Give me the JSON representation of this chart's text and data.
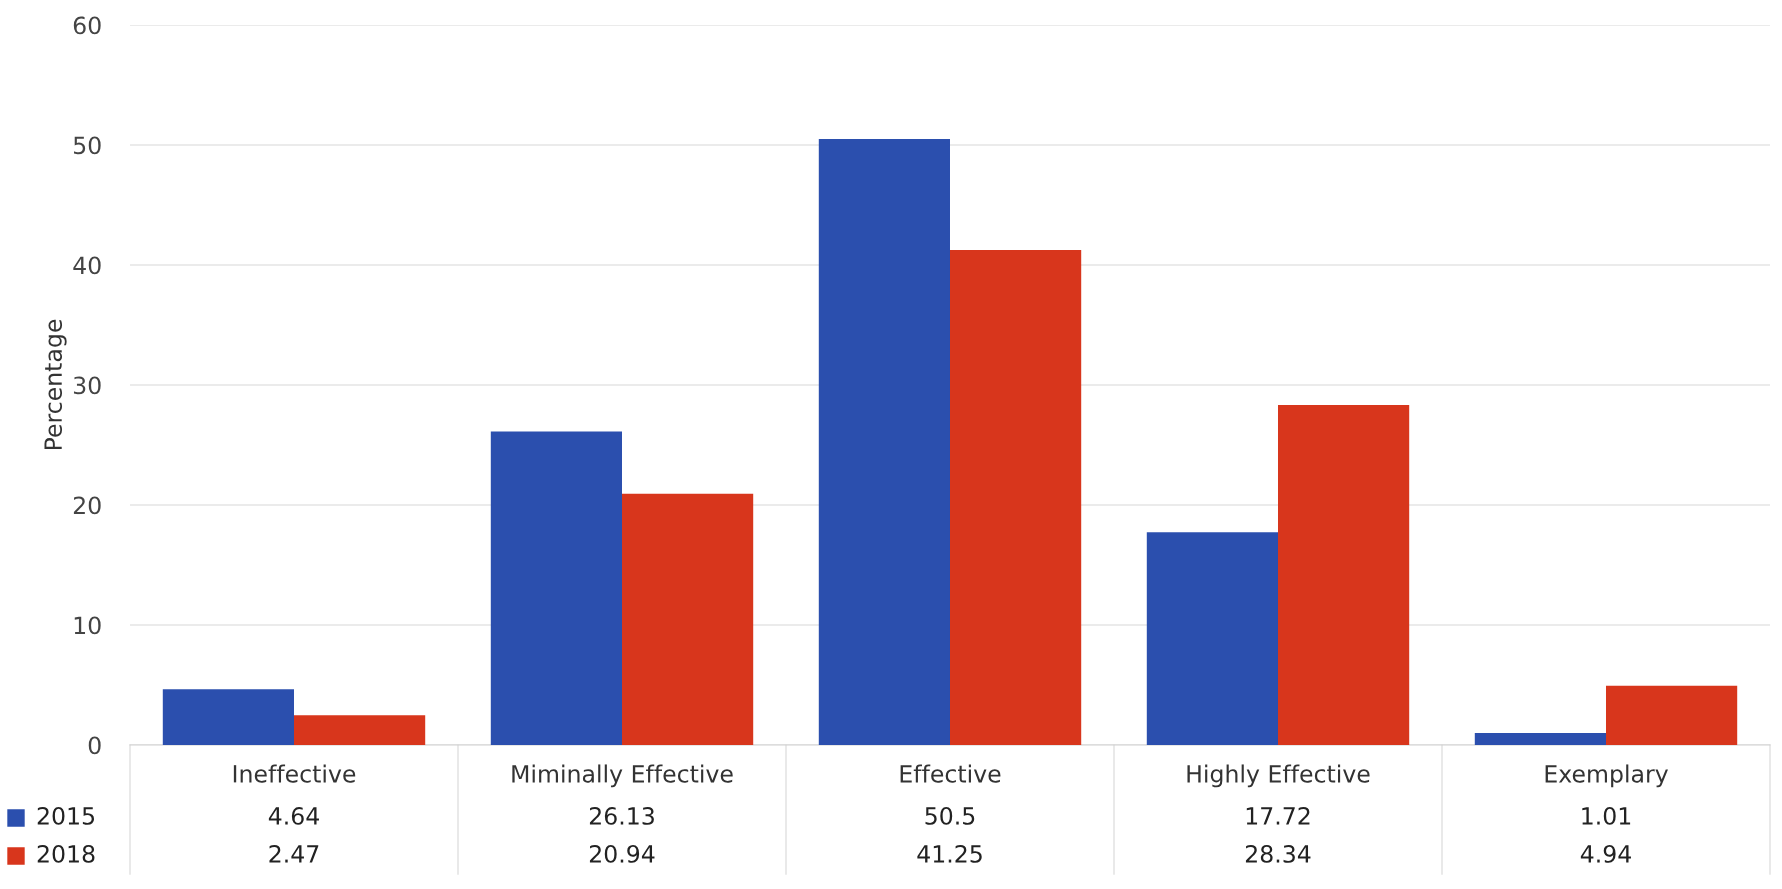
{
  "chart_data": {
    "type": "bar",
    "ylabel": "Percentage",
    "categories": [
      "Ineffective",
      "Miminally Effective",
      "Effective",
      "Highly Effective",
      "Exemplary"
    ],
    "series": [
      {
        "name": "2015",
        "color": "#2b4fae",
        "values": [
          4.64,
          26.13,
          50.5,
          17.72,
          1.01
        ]
      },
      {
        "name": "2018",
        "color": "#d8361c",
        "values": [
          2.47,
          20.94,
          41.25,
          28.34,
          4.94
        ]
      }
    ],
    "ylim": [
      0,
      60
    ],
    "yticks": [
      0,
      10,
      20,
      30,
      40,
      50,
      60
    ],
    "grid": "y",
    "data_labels": true,
    "legend": "bottom left"
  }
}
